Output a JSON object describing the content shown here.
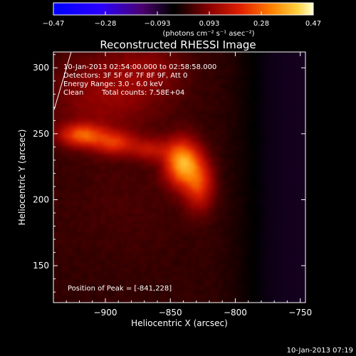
{
  "chart_data": {
    "type": "heatmap",
    "title": "Reconstructed RHESSI Image",
    "xlabel": "Heliocentric X (arcsec)",
    "ylabel": "Heliocentric Y (arcsec)",
    "x_ticks": [
      -900,
      -850,
      -800,
      -750
    ],
    "y_ticks": [
      150,
      200,
      250,
      300
    ],
    "xlim": [
      -940,
      -746
    ],
    "ylim": [
      122,
      312
    ],
    "colorbar": {
      "unit_label": "(photons cm⁻² s⁻¹ asec⁻²)",
      "tick_labels": [
        "-0.47",
        "-0.28",
        "-0.093",
        "0.093",
        "0.28",
        "0.47"
      ],
      "range": [
        -0.47,
        0.47
      ]
    },
    "annotations": {
      "time_range": "10-Jan-2013 02:54:00.000 to 02:58:58.000",
      "detectors": "Detectors: 3F 5F 6F 7F 8F 9F, Att 0",
      "energy_range": "Energy Range: 3.0 - 6.0 keV",
      "method": "Clean",
      "total_counts": "Total counts: 7.58E+04",
      "peak_position": "Position of Peak = [-841,228]"
    },
    "peak": {
      "x": -841,
      "y": 228,
      "value": 0.47
    },
    "sources": [
      {
        "x": -841,
        "y": 228,
        "sx": 9,
        "sy": 12,
        "amp": 0.34
      },
      {
        "x": -828,
        "y": 212,
        "sx": 8,
        "sy": 14,
        "amp": 0.2
      },
      {
        "x": -918,
        "y": 249,
        "sx": 12,
        "sy": 6,
        "amp": 0.24
      },
      {
        "x": -893,
        "y": 243,
        "sx": 11,
        "sy": 6,
        "amp": 0.18
      },
      {
        "x": -865,
        "y": 238,
        "sx": 11,
        "sy": 6,
        "amp": 0.12
      },
      {
        "x": -900,
        "y": 280,
        "sx": 30,
        "sy": 22,
        "amp": 0.09
      },
      {
        "x": -865,
        "y": 300,
        "sx": 20,
        "sy": 14,
        "amp": 0.06
      },
      {
        "x": -885,
        "y": 200,
        "sx": 35,
        "sy": 32,
        "amp": 0.02
      }
    ],
    "background": {
      "west_level": 0.015,
      "east_level": -0.07,
      "transition_x": -790,
      "transition_width": 9
    }
  },
  "footer": {
    "timestamp": "10-Jan-2013 07:19"
  }
}
